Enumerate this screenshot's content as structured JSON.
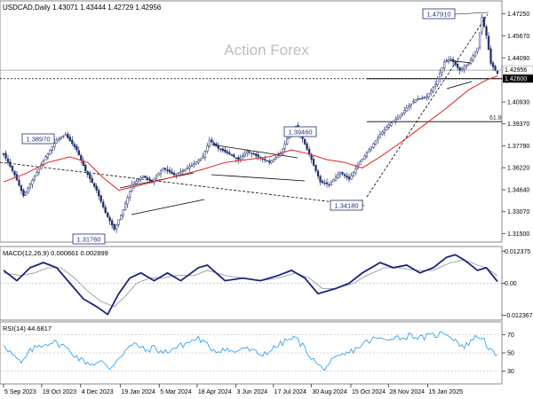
{
  "header": {
    "symbol_line": "USDCAD,Daily  1.43071 1.43444 1.42729 1.42956"
  },
  "watermark": "Action Forex",
  "chart_data": [
    {
      "type": "candlestick",
      "panel": "price",
      "yaxis_ticks": [
        "1.47250",
        "1.45670",
        "1.44090",
        "1.42600",
        "1.40930",
        "1.39370",
        "1.37790",
        "1.36220",
        "1.34640",
        "1.33070",
        "1.31500"
      ],
      "tick_values": [
        1.4725,
        1.4567,
        1.4409,
        1.426,
        1.4093,
        1.3937,
        1.3779,
        1.3622,
        1.3464,
        1.3307,
        1.315
      ],
      "ylim": [
        1.3108,
        1.4805
      ],
      "current_price_label": "1.42956",
      "current_price": 1.42956,
      "level_label": "1.42600",
      "level": 1.426,
      "fib_label": "61.8",
      "fib_level": 1.3952,
      "pivot_labels": [
        {
          "label": "1.47910",
          "value": 1.4791
        },
        {
          "label": "1.38970",
          "value": 1.3897
        },
        {
          "label": "1.39460",
          "value": 1.3946
        },
        {
          "label": "1.34180",
          "value": 1.3418
        },
        {
          "label": "1.31760",
          "value": 1.3176
        }
      ],
      "close_path": [
        [
          0,
          1.372
        ],
        [
          5,
          1.357
        ],
        [
          9,
          1.342
        ],
        [
          14,
          1.356
        ],
        [
          19,
          1.37
        ],
        [
          24,
          1.382
        ],
        [
          28,
          1.386
        ],
        [
          33,
          1.375
        ],
        [
          37,
          1.36
        ],
        [
          42,
          1.346
        ],
        [
          46,
          1.33
        ],
        [
          50,
          1.318
        ],
        [
          54,
          1.332
        ],
        [
          58,
          1.35
        ],
        [
          63,
          1.356
        ],
        [
          67,
          1.352
        ],
        [
          72,
          1.362
        ],
        [
          77,
          1.357
        ],
        [
          82,
          1.361
        ],
        [
          86,
          1.365
        ],
        [
          90,
          1.37
        ],
        [
          93,
          1.382
        ],
        [
          97,
          1.376
        ],
        [
          102,
          1.372
        ],
        [
          106,
          1.368
        ],
        [
          110,
          1.374
        ],
        [
          115,
          1.37
        ],
        [
          120,
          1.366
        ],
        [
          125,
          1.372
        ],
        [
          128,
          1.383
        ],
        [
          132,
          1.392
        ],
        [
          135,
          1.383
        ],
        [
          139,
          1.368
        ],
        [
          143,
          1.352
        ],
        [
          147,
          1.35
        ],
        [
          152,
          1.359
        ],
        [
          156,
          1.354
        ],
        [
          160,
          1.364
        ],
        [
          165,
          1.375
        ],
        [
          170,
          1.386
        ],
        [
          174,
          1.393
        ],
        [
          178,
          1.398
        ],
        [
          182,
          1.405
        ],
        [
          186,
          1.411
        ],
        [
          191,
          1.413
        ],
        [
          195,
          1.422
        ],
        [
          199,
          1.438
        ],
        [
          202,
          1.44
        ],
        [
          206,
          1.432
        ],
        [
          210,
          1.437
        ],
        [
          214,
          1.448
        ],
        [
          216,
          1.47
        ],
        [
          218,
          1.457
        ],
        [
          220,
          1.437
        ],
        [
          223,
          1.4296
        ]
      ],
      "moving_average_path": [
        [
          0,
          1.352
        ],
        [
          10,
          1.358
        ],
        [
          20,
          1.366
        ],
        [
          30,
          1.37
        ],
        [
          38,
          1.366
        ],
        [
          45,
          1.355
        ],
        [
          52,
          1.346
        ],
        [
          60,
          1.349
        ],
        [
          70,
          1.353
        ],
        [
          80,
          1.357
        ],
        [
          90,
          1.361
        ],
        [
          100,
          1.366
        ],
        [
          110,
          1.368
        ],
        [
          120,
          1.37
        ],
        [
          130,
          1.375
        ],
        [
          138,
          1.372
        ],
        [
          146,
          1.368
        ],
        [
          154,
          1.366
        ],
        [
          162,
          1.362
        ],
        [
          170,
          1.37
        ],
        [
          180,
          1.381
        ],
        [
          190,
          1.393
        ],
        [
          200,
          1.405
        ],
        [
          210,
          1.418
        ],
        [
          218,
          1.425
        ],
        [
          223,
          1.428
        ]
      ],
      "date_labels": [
        "5 Sep 2023",
        "19 Oct 2023",
        "4 Dec 2023",
        "19 Jan 2024",
        "5 Mar 2024",
        "18 Apr 2024",
        "3 Jun 2024",
        "17 Jul 2024",
        "30 Aug 2024",
        "15 Oct 2024",
        "28 Nov 2024",
        "15 Jan 2025"
      ],
      "date_positions": [
        0,
        17.2,
        34.8,
        52.7,
        70.3,
        87.4,
        104.9,
        121.8,
        138.9,
        156.8,
        173.8,
        191.5
      ]
    },
    {
      "type": "line",
      "panel": "macd",
      "indicator_label": "MACD(12,26,9) 0.000661 0.002899",
      "yaxis_ticks": [
        "0.012375",
        "0.00",
        "-0.012367"
      ],
      "tick_values": [
        0.012375,
        0.0,
        -0.012367
      ],
      "ylim": [
        -0.0135,
        0.0135
      ],
      "macd": [
        [
          0,
          0.005
        ],
        [
          6,
          0.001
        ],
        [
          12,
          0.006
        ],
        [
          18,
          0.008
        ],
        [
          24,
          0.006
        ],
        [
          30,
          0.0
        ],
        [
          36,
          -0.006
        ],
        [
          42,
          -0.009
        ],
        [
          47,
          -0.012
        ],
        [
          52,
          -0.004
        ],
        [
          57,
          0.002
        ],
        [
          62,
          0.004
        ],
        [
          68,
          0.001
        ],
        [
          74,
          0.004
        ],
        [
          80,
          0.001
        ],
        [
          88,
          0.006
        ],
        [
          92,
          0.007
        ],
        [
          100,
          0.001
        ],
        [
          108,
          0.002
        ],
        [
          116,
          0.001
        ],
        [
          124,
          0.003
        ],
        [
          130,
          0.005
        ],
        [
          136,
          0.002
        ],
        [
          142,
          -0.004
        ],
        [
          150,
          -0.002
        ],
        [
          156,
          0.0
        ],
        [
          162,
          0.004
        ],
        [
          170,
          0.008
        ],
        [
          176,
          0.006
        ],
        [
          182,
          0.007
        ],
        [
          188,
          0.004
        ],
        [
          194,
          0.006
        ],
        [
          200,
          0.01
        ],
        [
          204,
          0.011
        ],
        [
          208,
          0.009
        ],
        [
          214,
          0.005
        ],
        [
          218,
          0.006
        ],
        [
          223,
          0.000661
        ]
      ],
      "signal": [
        [
          0,
          0.004
        ],
        [
          8,
          0.003
        ],
        [
          14,
          0.004
        ],
        [
          20,
          0.006
        ],
        [
          26,
          0.006
        ],
        [
          32,
          0.002
        ],
        [
          38,
          -0.003
        ],
        [
          44,
          -0.007
        ],
        [
          50,
          -0.009
        ],
        [
          55,
          -0.005
        ],
        [
          60,
          0.0
        ],
        [
          66,
          0.002
        ],
        [
          72,
          0.002
        ],
        [
          78,
          0.003
        ],
        [
          86,
          0.003
        ],
        [
          92,
          0.005
        ],
        [
          100,
          0.003
        ],
        [
          108,
          0.002
        ],
        [
          116,
          0.001
        ],
        [
          124,
          0.002
        ],
        [
          132,
          0.004
        ],
        [
          138,
          0.002
        ],
        [
          144,
          -0.002
        ],
        [
          150,
          -0.002
        ],
        [
          158,
          0.0
        ],
        [
          164,
          0.003
        ],
        [
          172,
          0.006
        ],
        [
          178,
          0.006
        ],
        [
          186,
          0.005
        ],
        [
          194,
          0.005
        ],
        [
          202,
          0.008
        ],
        [
          208,
          0.009
        ],
        [
          214,
          0.007
        ],
        [
          218,
          0.006
        ],
        [
          223,
          0.002899
        ]
      ]
    },
    {
      "type": "line",
      "panel": "rsi",
      "indicator_label": "RSI(14) 44.6817",
      "yaxis_ticks": [
        "70",
        "50",
        "30"
      ],
      "tick_values": [
        70,
        50,
        30
      ],
      "ylim": [
        18,
        82
      ],
      "rsi": [
        [
          0,
          60
        ],
        [
          4,
          48
        ],
        [
          8,
          38
        ],
        [
          12,
          52
        ],
        [
          16,
          58
        ],
        [
          22,
          62
        ],
        [
          27,
          58
        ],
        [
          31,
          50
        ],
        [
          35,
          42
        ],
        [
          40,
          38
        ],
        [
          44,
          40
        ],
        [
          48,
          33
        ],
        [
          52,
          45
        ],
        [
          56,
          55
        ],
        [
          60,
          60
        ],
        [
          64,
          52
        ],
        [
          68,
          56
        ],
        [
          72,
          50
        ],
        [
          76,
          54
        ],
        [
          80,
          58
        ],
        [
          84,
          62
        ],
        [
          88,
          66
        ],
        [
          92,
          58
        ],
        [
          96,
          52
        ],
        [
          100,
          55
        ],
        [
          104,
          50
        ],
        [
          108,
          56
        ],
        [
          112,
          52
        ],
        [
          116,
          48
        ],
        [
          120,
          52
        ],
        [
          124,
          58
        ],
        [
          128,
          64
        ],
        [
          132,
          66
        ],
        [
          136,
          55
        ],
        [
          140,
          42
        ],
        [
          144,
          32
        ],
        [
          148,
          40
        ],
        [
          152,
          46
        ],
        [
          156,
          50
        ],
        [
          160,
          56
        ],
        [
          164,
          62
        ],
        [
          168,
          66
        ],
        [
          172,
          64
        ],
        [
          176,
          68
        ],
        [
          180,
          66
        ],
        [
          184,
          70
        ],
        [
          188,
          66
        ],
        [
          192,
          68
        ],
        [
          196,
          70
        ],
        [
          200,
          72
        ],
        [
          204,
          64
        ],
        [
          208,
          56
        ],
        [
          212,
          66
        ],
        [
          216,
          68
        ],
        [
          220,
          52
        ],
        [
          223,
          44.68
        ]
      ]
    }
  ]
}
